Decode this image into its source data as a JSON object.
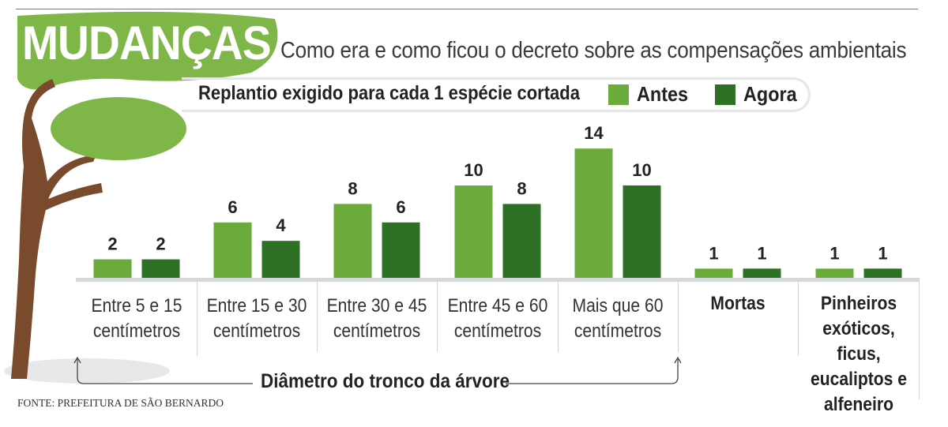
{
  "headline": "MUDANÇAS",
  "subtitle": "Como era e como ficou o decreto sobre as compensações ambientais",
  "source": "FONTE: PREFEITURA DE SÃO BERNARDO",
  "axis_caption": "Diâmetro do tronco da árvore",
  "colors": {
    "antes": "#6aab3b",
    "agora": "#2e7026",
    "headline_bg": "#7eb648",
    "tree_trunk": "#7a4a2c",
    "axis": "#d4d8db"
  },
  "chart_data": {
    "type": "bar",
    "title": "Replantio exigido para cada 1 espécie cortada",
    "categories": [
      [
        "Entre 5 e 15",
        "centímetros"
      ],
      [
        "Entre 15 e 30",
        "centímetros"
      ],
      [
        "Entre 30 e 45",
        "centímetros"
      ],
      [
        "Entre 45 e 60",
        "centímetros"
      ],
      [
        "Mais que 60",
        "centímetros"
      ],
      [
        "Mortas"
      ],
      [
        "Pinheiros",
        "exóticos, ficus,",
        "eucaliptos e",
        "alfeneiro"
      ]
    ],
    "series": [
      {
        "name": "Antes",
        "values": [
          2,
          6,
          8,
          10,
          14,
          1,
          1
        ]
      },
      {
        "name": "Agora",
        "values": [
          2,
          4,
          6,
          8,
          10,
          1,
          1
        ]
      }
    ],
    "ylim": [
      0,
      14
    ],
    "grid": false,
    "legend": "top"
  }
}
